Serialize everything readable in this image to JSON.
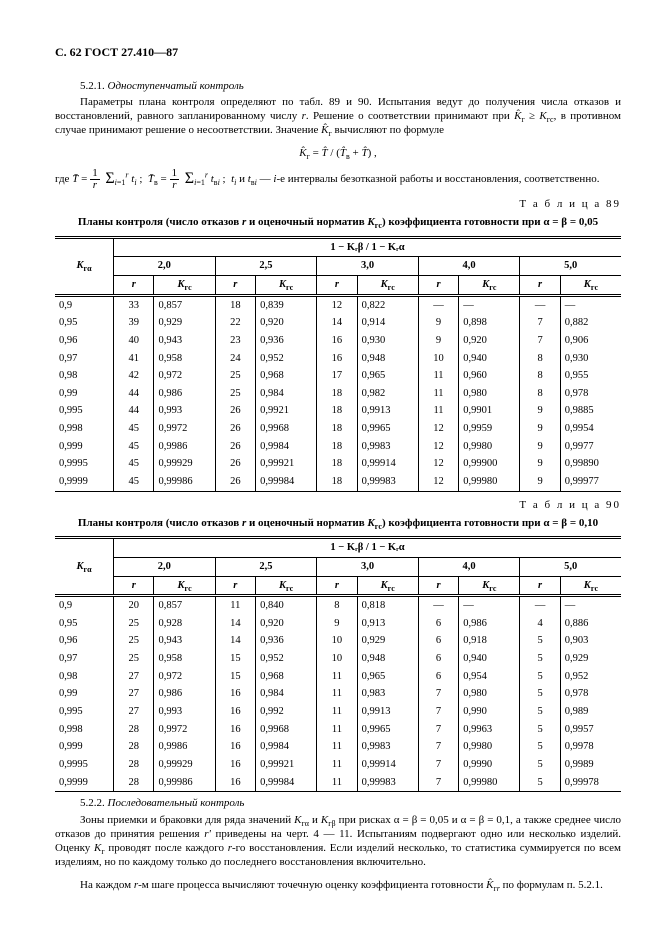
{
  "header": "С. 62 ГОСТ 27.410—87",
  "s521_num": "5.2.1. ",
  "s521_title": "Одноступенчатый контроль",
  "p1a": "Параметры плана контроля определяют по табл. 89 и 90. Испытания ведут до получения числа отказов и восстановлений, равного запланированному числу ",
  "p1b": ". Решение о соответствии принимают при ",
  "p1c": ", в противном случае принимают решение о несоответствии. Значение ",
  "p1d": " вычисляют по формуле",
  "formula": "K̂ᵣ = T̂ / (T̂ᵦ + T̂) ,",
  "p_where_a": "где ",
  "p_where_b": " и ",
  "p_where_c": " — ",
  "p_where_d": "-е интервалы безотказной работы и восстановления, соответственно.",
  "tbl89_cap": "Т а б л и ц а   89",
  "tbl89_title_a": "Планы контроля (число отказов ",
  "tbl89_title_b": " и оценочный норматив ",
  "tbl89_title_c": ") коэффициента готовности при α = β = 0,05",
  "tbl90_cap": "Т а б л и ц а   90",
  "tbl90_title_c": ") коэффициента готовности при α = β = 0,10",
  "ratio_header": "1 − Kᵣβ / 1 − Kᵣα",
  "group_cols": [
    "2,0",
    "2,5",
    "3,0",
    "4,0",
    "5,0"
  ],
  "sub_r": "r",
  "sub_K": "Kᵣc",
  "col_K": "Kᵣα",
  "tbl89_rows": [
    [
      "0,9",
      "33",
      "0,857",
      "18",
      "0,839",
      "12",
      "0,822",
      "—",
      "—",
      "—",
      "—"
    ],
    [
      "0,95",
      "39",
      "0,929",
      "22",
      "0,920",
      "14",
      "0,914",
      "9",
      "0,898",
      "7",
      "0,882"
    ],
    [
      "0,96",
      "40",
      "0,943",
      "23",
      "0,936",
      "16",
      "0,930",
      "9",
      "0,920",
      "7",
      "0,906"
    ],
    [
      "0,97",
      "41",
      "0,958",
      "24",
      "0,952",
      "16",
      "0,948",
      "10",
      "0,940",
      "8",
      "0,930"
    ],
    [
      "0,98",
      "42",
      "0,972",
      "25",
      "0,968",
      "17",
      "0,965",
      "11",
      "0,960",
      "8",
      "0,955"
    ],
    [
      "0,99",
      "44",
      "0,986",
      "25",
      "0,984",
      "18",
      "0,982",
      "11",
      "0,980",
      "8",
      "0,978"
    ],
    [
      "0,995",
      "44",
      "0,993",
      "26",
      "0,9921",
      "18",
      "0,9913",
      "11",
      "0,9901",
      "9",
      "0,9885"
    ],
    [
      "0,998",
      "45",
      "0,9972",
      "26",
      "0,9968",
      "18",
      "0,9965",
      "12",
      "0,9959",
      "9",
      "0,9954"
    ],
    [
      "0,999",
      "45",
      "0,9986",
      "26",
      "0,9984",
      "18",
      "0,9983",
      "12",
      "0,9980",
      "9",
      "0,9977"
    ],
    [
      "0,9995",
      "45",
      "0,99929",
      "26",
      "0,99921",
      "18",
      "0,99914",
      "12",
      "0,99900",
      "9",
      "0,99890"
    ],
    [
      "0,9999",
      "45",
      "0,99986",
      "26",
      "0,99984",
      "18",
      "0,99983",
      "12",
      "0,99980",
      "9",
      "0,99977"
    ]
  ],
  "tbl90_rows": [
    [
      "0,9",
      "20",
      "0,857",
      "11",
      "0,840",
      "8",
      "0,818",
      "—",
      "—",
      "—",
      "—"
    ],
    [
      "0,95",
      "25",
      "0,928",
      "14",
      "0,920",
      "9",
      "0,913",
      "6",
      "0,986",
      "4",
      "0,886"
    ],
    [
      "0,96",
      "25",
      "0,943",
      "14",
      "0,936",
      "10",
      "0,929",
      "6",
      "0,918",
      "5",
      "0,903"
    ],
    [
      "0,97",
      "25",
      "0,958",
      "15",
      "0,952",
      "10",
      "0,948",
      "6",
      "0,940",
      "5",
      "0,929"
    ],
    [
      "0,98",
      "27",
      "0,972",
      "15",
      "0,968",
      "11",
      "0,965",
      "6",
      "0,954",
      "5",
      "0,952"
    ],
    [
      "0,99",
      "27",
      "0,986",
      "16",
      "0,984",
      "11",
      "0,983",
      "7",
      "0,980",
      "5",
      "0,978"
    ],
    [
      "0,995",
      "27",
      "0,993",
      "16",
      "0,992",
      "11",
      "0,9913",
      "7",
      "0,990",
      "5",
      "0,989"
    ],
    [
      "0,998",
      "28",
      "0,9972",
      "16",
      "0,9968",
      "11",
      "0,9965",
      "7",
      "0,9963",
      "5",
      "0,9957"
    ],
    [
      "0,999",
      "28",
      "0,9986",
      "16",
      "0,9984",
      "11",
      "0,9983",
      "7",
      "0,9980",
      "5",
      "0,9978"
    ],
    [
      "0,9995",
      "28",
      "0,99929",
      "16",
      "0,99921",
      "11",
      "0,99914",
      "7",
      "0,9990",
      "5",
      "0,9989"
    ],
    [
      "0,9999",
      "28",
      "0,99986",
      "16",
      "0,99984",
      "11",
      "0,99983",
      "7",
      "0,99980",
      "5",
      "0,99978"
    ]
  ],
  "s522_num": "5.2.2. ",
  "s522_title": "Последовательный контроль",
  "p5a": "Зоны приемки и браковки для ряда значений ",
  "p5b": " и ",
  "p5c": " при рисках α = β = 0,05 и α = β = 0,1, а также среднее число отказов до принятия решения ",
  "p5d": " приведены на черт. 4 — 11. Испытаниям подвергают одно или несколько изделий. Оценку ",
  "p5e": " проводят после каждого ",
  "p5f": "-го восстановления. Если изделий несколько, то статистика суммируется по всем изделиям, но по каждому только до последнего восстановления включительно.",
  "p6a": "На каждом ",
  "p6b": "-м шаге процесса вычисляют точечную оценку коэффициента готовности ",
  "p6c": " по формулам п. 5.2.1."
}
